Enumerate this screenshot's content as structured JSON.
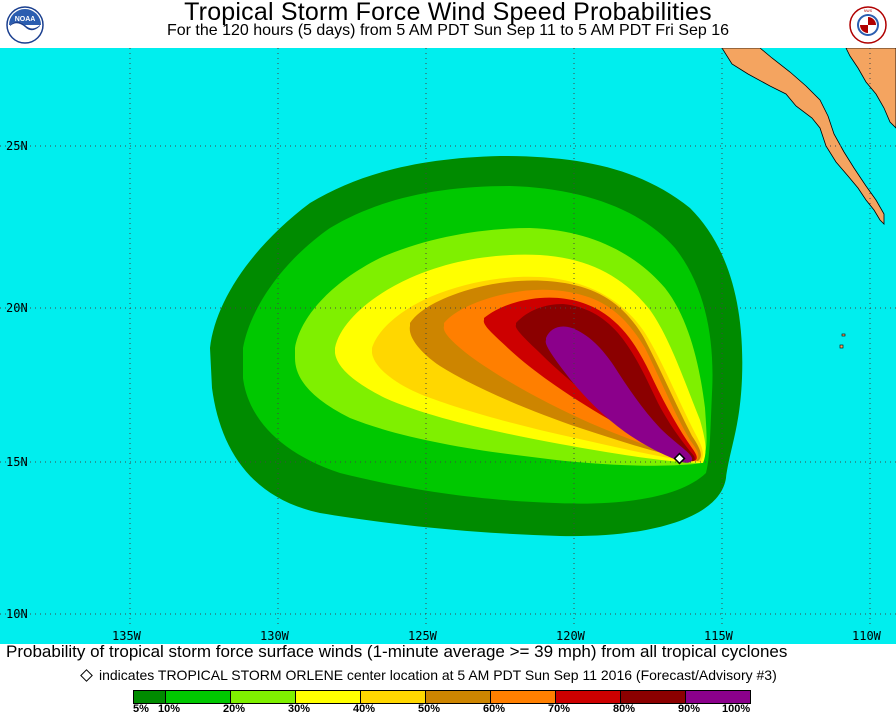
{
  "header": {
    "title": "Tropical Storm Force Wind Speed Probabilities",
    "subtitle": "For the 120 hours (5 days) from 5 AM PDT Sun Sep 11 to 5 AM PDT Fri Sep 16"
  },
  "logos": {
    "left_text": "NOAA",
    "right_text": "NATIONAL WEATHER SERVICE"
  },
  "map": {
    "latitude_labels": [
      "25N",
      "20N",
      "15N",
      "10N"
    ],
    "longitude_labels": [
      "135W",
      "130W",
      "125W",
      "120W",
      "115W",
      "110W"
    ],
    "ocean_color": "#00eeee",
    "land_color": "#f4a460",
    "storm_center": {
      "lat": 15.1,
      "lon": 116.2
    }
  },
  "footer": {
    "line1": "Probability of tropical storm force surface winds (1-minute average >= 39 mph) from all tropical cyclones",
    "line2": "indicates TROPICAL STORM ORLENE center location at 5 AM PDT Sun Sep 11 2016 (Forecast/Advisory #3)"
  },
  "legend": {
    "labels": [
      "5%",
      "10%",
      "20%",
      "30%",
      "40%",
      "50%",
      "60%",
      "70%",
      "80%",
      "90%",
      "100%"
    ],
    "colors": [
      "#008b00",
      "#00c800",
      "#7ff000",
      "#ffff00",
      "#ffd700",
      "#cd8500",
      "#ff7f00",
      "#cd0000",
      "#8b0000",
      "#8b008b"
    ]
  }
}
